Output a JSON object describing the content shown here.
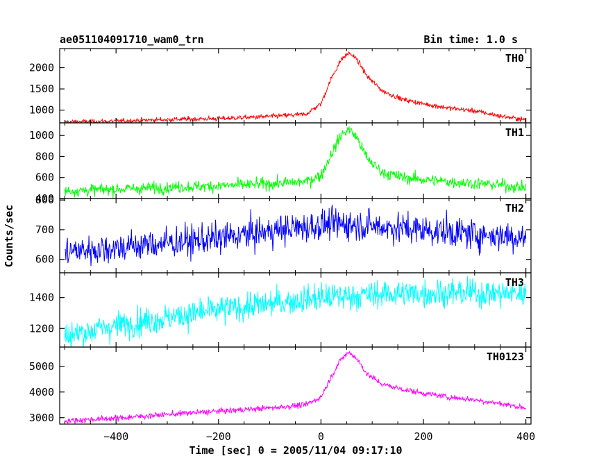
{
  "chart_data": {
    "type": "line",
    "title": "ae051104091710_wam0_trn",
    "subtitle": "Bin time: 1.0 s",
    "xlabel": "Time [sec] 0 = 2005/11/04 09:17:10",
    "ylabel": "Counts/sec",
    "xlim": [
      -510,
      410
    ],
    "x_ticks": [
      -400,
      -200,
      0,
      200,
      400
    ],
    "x_tick_labels": [
      "−400",
      "−200",
      "0",
      "200",
      "400"
    ],
    "grid": false,
    "panels": [
      {
        "name": "TH0",
        "color": "#ff0000",
        "ylim": [
          700,
          2450
        ],
        "y_ticks": [
          1000,
          1500,
          2000
        ],
        "noise": 28,
        "x": [
          -500,
          -400,
          -300,
          -200,
          -100,
          -30,
          0,
          20,
          40,
          55,
          70,
          90,
          120,
          160,
          200,
          250,
          300,
          350,
          400
        ],
        "values": [
          720,
          740,
          780,
          800,
          850,
          900,
          1150,
          1750,
          2200,
          2350,
          2200,
          1800,
          1450,
          1250,
          1150,
          1050,
          980,
          860,
          770
        ]
      },
      {
        "name": "TH1",
        "color": "#00ff00",
        "ylim": [
          400,
          1120
        ],
        "y_ticks": [
          400,
          600,
          800,
          1000
        ],
        "noise": 28,
        "x": [
          -500,
          -400,
          -300,
          -200,
          -100,
          -30,
          0,
          20,
          40,
          55,
          70,
          90,
          120,
          160,
          200,
          250,
          300,
          350,
          400
        ],
        "values": [
          470,
          490,
          505,
          520,
          540,
          560,
          620,
          820,
          1010,
          1060,
          980,
          780,
          650,
          600,
          580,
          560,
          545,
          530,
          500
        ]
      },
      {
        "name": "TH2",
        "color": "#0000ff",
        "ylim": [
          555,
          805
        ],
        "y_ticks": [
          600,
          700,
          800
        ],
        "noise": 26,
        "x": [
          -500,
          -400,
          -300,
          -200,
          -100,
          0,
          50,
          100,
          200,
          300,
          400
        ],
        "values": [
          625,
          640,
          655,
          670,
          695,
          715,
          720,
          712,
          700,
          685,
          675
        ]
      },
      {
        "name": "TH3",
        "color": "#00ffff",
        "ylim": [
          1080,
          1560
        ],
        "y_ticks": [
          1200,
          1400
        ],
        "noise": 45,
        "x": [
          -500,
          -400,
          -300,
          -200,
          -100,
          0,
          100,
          200,
          300,
          400
        ],
        "values": [
          1150,
          1220,
          1270,
          1320,
          1360,
          1400,
          1420,
          1430,
          1430,
          1425
        ]
      },
      {
        "name": "TH0123",
        "color": "#ff00ff",
        "ylim": [
          2750,
          5750
        ],
        "y_ticks": [
          3000,
          4000,
          5000
        ],
        "noise": 55,
        "x": [
          -500,
          -400,
          -300,
          -200,
          -100,
          -30,
          0,
          20,
          40,
          55,
          70,
          90,
          120,
          160,
          200,
          250,
          300,
          350,
          400
        ],
        "values": [
          2880,
          2980,
          3130,
          3250,
          3380,
          3500,
          3800,
          4600,
          5300,
          5550,
          5300,
          4700,
          4300,
          4100,
          3950,
          3800,
          3700,
          3550,
          3380
        ]
      }
    ]
  }
}
